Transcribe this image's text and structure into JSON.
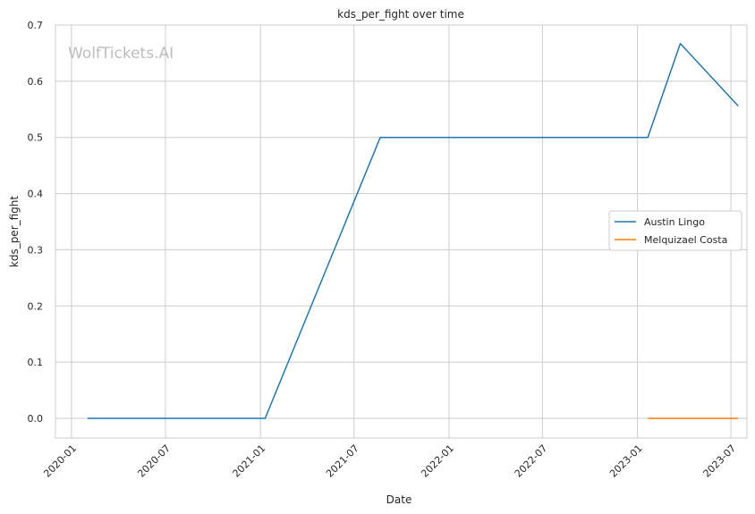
{
  "chart_data": {
    "type": "line",
    "title": "kds_per_fight over time",
    "xlabel": "Date",
    "ylabel": "kds_per_fight",
    "watermark": "WolfTickets.AI",
    "x_ticks": [
      "2020-01",
      "2020-07",
      "2021-01",
      "2021-07",
      "2022-01",
      "2022-07",
      "2023-01",
      "2023-07"
    ],
    "y_ticks": [
      "0.0",
      "0.1",
      "0.2",
      "0.3",
      "0.4",
      "0.5",
      "0.6",
      "0.7"
    ],
    "xlim": [
      "2019-12-01",
      "2023-08-01"
    ],
    "ylim": [
      -0.035,
      0.7
    ],
    "grid": true,
    "legend_position": "center-right",
    "series": [
      {
        "name": "Austin Lingo",
        "color": "#1f77b4",
        "points": [
          {
            "x": "2020-02-01",
            "y": 0.0
          },
          {
            "x": "2021-01-10",
            "y": 0.0
          },
          {
            "x": "2021-08-21",
            "y": 0.5
          },
          {
            "x": "2023-01-21",
            "y": 0.5
          },
          {
            "x": "2023-03-25",
            "y": 0.667
          },
          {
            "x": "2023-07-15",
            "y": 0.556
          }
        ]
      },
      {
        "name": "Melquizael Costa",
        "color": "#ff7f0e",
        "points": [
          {
            "x": "2023-01-21",
            "y": 0.0
          },
          {
            "x": "2023-07-15",
            "y": 0.0
          }
        ]
      }
    ]
  }
}
